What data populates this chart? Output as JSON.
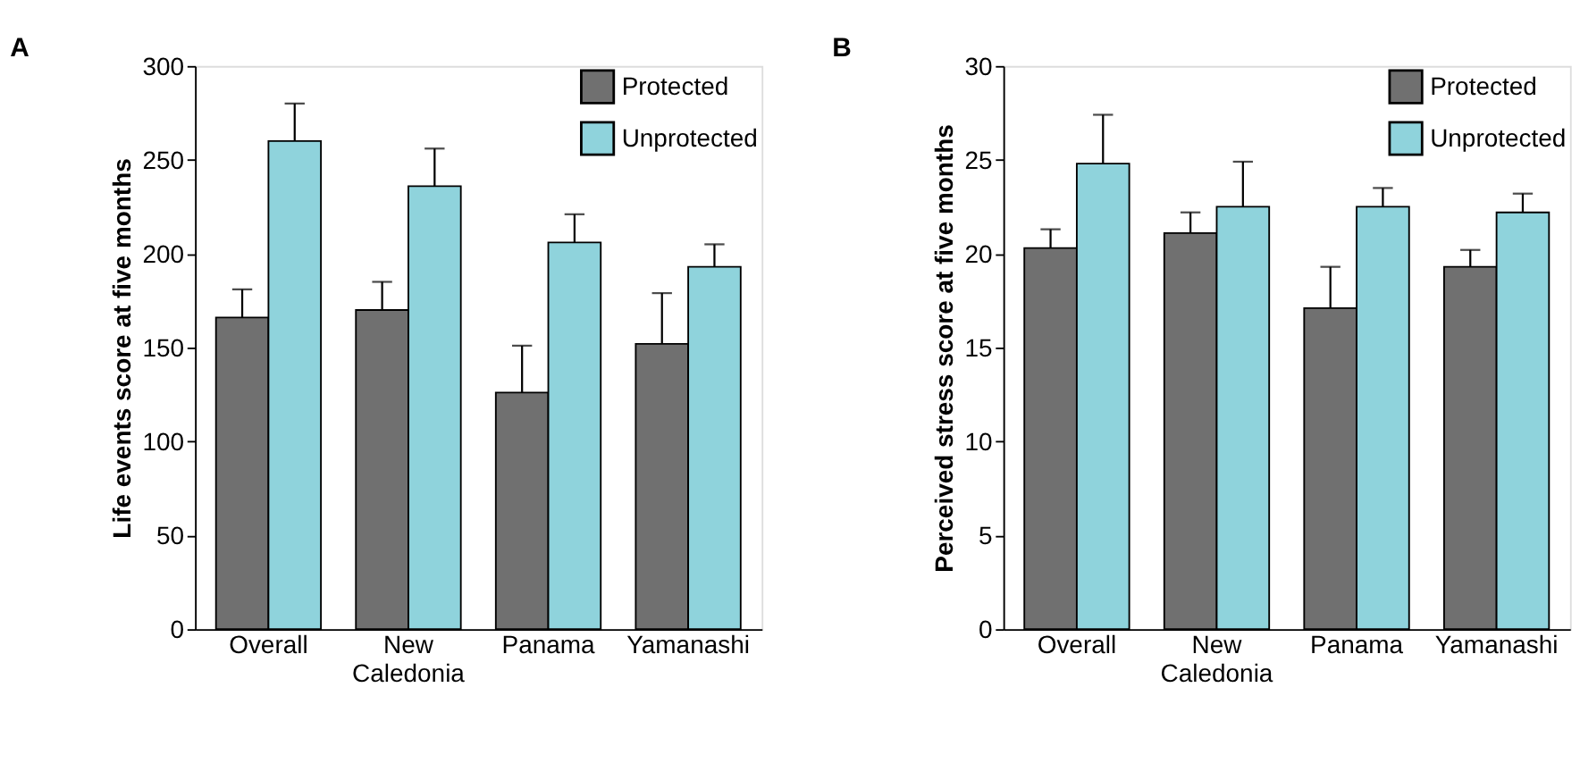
{
  "chart_data": [
    {
      "type": "bar",
      "title": "A",
      "ylabel": "Life events score at five months",
      "categories": [
        "Overall",
        "New Caledonia",
        "Panama",
        "Yamanashi"
      ],
      "ylim": [
        0,
        300
      ],
      "yticks": [
        0,
        50,
        100,
        150,
        200,
        250,
        300
      ],
      "legend": "top right",
      "grid": false,
      "series": [
        {
          "name": "Protected",
          "color": "#707070",
          "values": [
            166,
            170,
            126,
            152
          ],
          "errors": [
            [
              166,
              181
            ],
            [
              170,
              185
            ],
            [
              126,
              151
            ],
            [
              152,
              179
            ]
          ]
        },
        {
          "name": "Unprotected",
          "color": "#8fd3dc",
          "values": [
            260,
            236,
            206,
            193
          ],
          "errors": [
            [
              260,
              280
            ],
            [
              236,
              256
            ],
            [
              206,
              221
            ],
            [
              193,
              205
            ]
          ]
        }
      ]
    },
    {
      "type": "bar",
      "title": "B",
      "ylabel": "Perceived stress score at five months",
      "categories": [
        "Overall",
        "New Caledonia",
        "Panama",
        "Yamanashi"
      ],
      "ylim": [
        0,
        30
      ],
      "yticks": [
        0,
        5,
        10,
        15,
        20,
        25,
        30
      ],
      "legend": "top right",
      "grid": false,
      "series": [
        {
          "name": "Protected",
          "color": "#707070",
          "values": [
            20.3,
            21.1,
            17.1,
            19.3
          ],
          "errors": [
            [
              20.3,
              21.3
            ],
            [
              21.1,
              22.2
            ],
            [
              17.1,
              19.3
            ],
            [
              19.3,
              20.2
            ]
          ]
        },
        {
          "name": "Unprotected",
          "color": "#8fd3dc",
          "values": [
            24.8,
            22.5,
            22.5,
            22.2
          ],
          "errors": [
            [
              24.8,
              27.4
            ],
            [
              22.5,
              24.9
            ],
            [
              22.5,
              23.5
            ],
            [
              22.2,
              23.2
            ]
          ]
        }
      ]
    }
  ]
}
